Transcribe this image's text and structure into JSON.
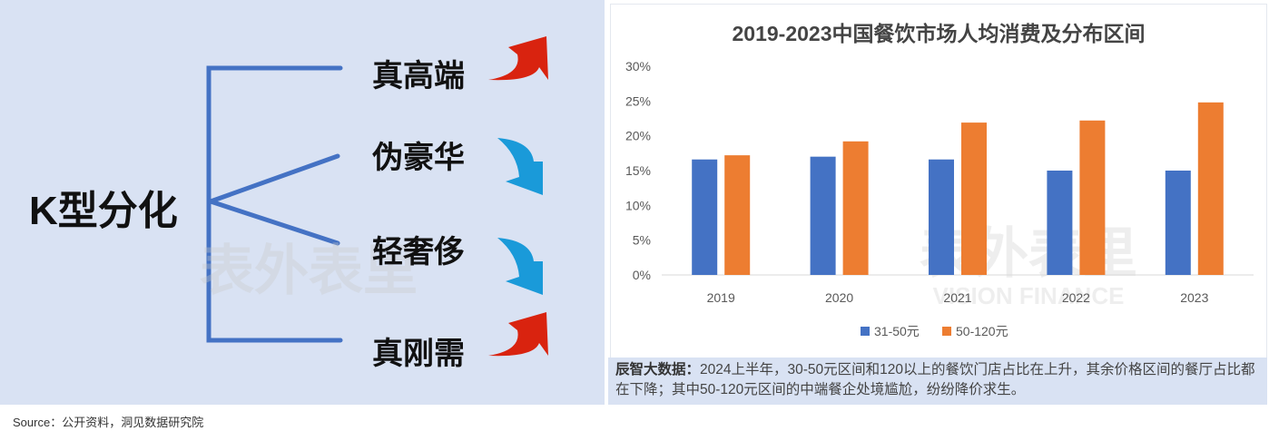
{
  "diagram": {
    "root": "K型分化",
    "branches": [
      {
        "label": "真高端",
        "trend": "up"
      },
      {
        "label": "伪豪华",
        "trend": "down"
      },
      {
        "label": "轻奢侈",
        "trend": "down"
      },
      {
        "label": "真刚需",
        "trend": "up"
      }
    ],
    "colors": {
      "line": "#4472c4",
      "up": "#d9230f",
      "down": "#1a9ad9"
    }
  },
  "watermark": {
    "cn": "表外表里",
    "en": "VISION FINANCE"
  },
  "chart_data": {
    "type": "bar",
    "title": "2019-2023中国餐饮市场人均消费及分布区间",
    "categories": [
      "2019",
      "2020",
      "2021",
      "2022",
      "2023"
    ],
    "series": [
      {
        "name": "31-50元",
        "color": "#4472c4",
        "values": [
          16.6,
          17.0,
          16.6,
          15.0,
          15.0
        ]
      },
      {
        "name": "50-120元",
        "color": "#ed7d31",
        "values": [
          17.2,
          19.2,
          21.9,
          22.2,
          24.8
        ]
      }
    ],
    "yticks": [
      "0%",
      "5%",
      "10%",
      "15%",
      "20%",
      "25%",
      "30%"
    ],
    "ylim": [
      0,
      30
    ],
    "xlabel": "",
    "ylabel": "",
    "legend": "bottom",
    "grid": false
  },
  "caption": {
    "bold": "辰智大数据：",
    "text": "2024上半年，30-50元区间和120以上的餐饮门店占比在上升，其余价格区间的餐厅占比都在下降；其中50-120元区间的中端餐企处境尴尬，纷纷降价求生。"
  },
  "source": "Source：公开资料，洞见数据研究院"
}
